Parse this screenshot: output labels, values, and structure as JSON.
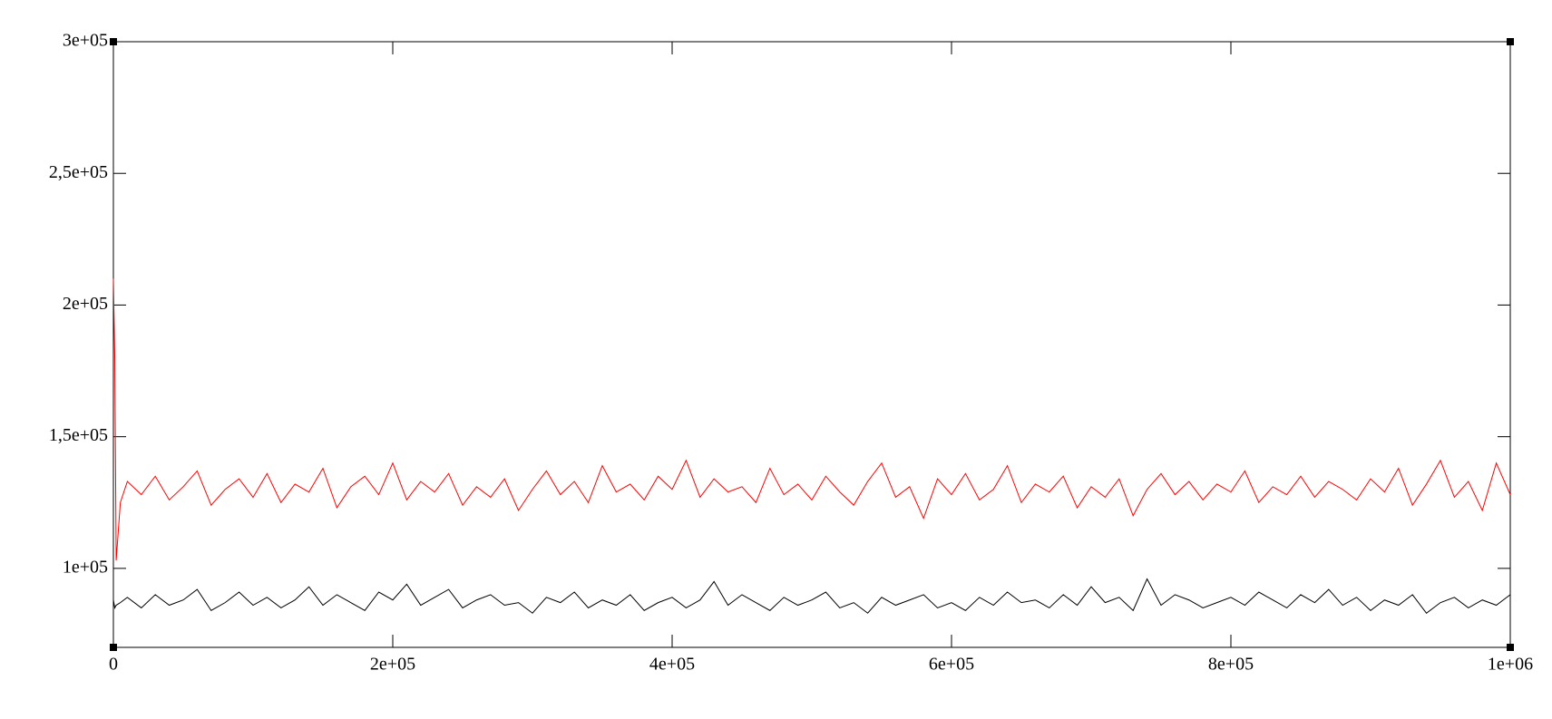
{
  "chart_data": {
    "type": "line",
    "x": [
      0,
      1000,
      2000,
      5000,
      10000,
      20000,
      30000,
      40000,
      50000,
      60000,
      70000,
      80000,
      90000,
      100000,
      110000,
      120000,
      130000,
      140000,
      150000,
      160000,
      170000,
      180000,
      190000,
      200000,
      210000,
      220000,
      230000,
      240000,
      250000,
      260000,
      270000,
      280000,
      290000,
      300000,
      310000,
      320000,
      330000,
      340000,
      350000,
      360000,
      370000,
      380000,
      390000,
      400000,
      410000,
      420000,
      430000,
      440000,
      450000,
      460000,
      470000,
      480000,
      490000,
      500000,
      510000,
      520000,
      530000,
      540000,
      550000,
      560000,
      570000,
      580000,
      590000,
      600000,
      610000,
      620000,
      630000,
      640000,
      650000,
      660000,
      670000,
      680000,
      690000,
      700000,
      710000,
      720000,
      730000,
      740000,
      750000,
      760000,
      770000,
      780000,
      790000,
      800000,
      810000,
      820000,
      830000,
      840000,
      850000,
      860000,
      870000,
      880000,
      890000,
      900000,
      910000,
      920000,
      930000,
      940000,
      950000,
      960000,
      970000,
      980000,
      990000,
      1000000
    ],
    "series": [
      {
        "color": "#ff0000",
        "values": [
          210000,
          180000,
          103000,
          125000,
          133000,
          128000,
          135000,
          126000,
          131000,
          137000,
          124000,
          130000,
          134000,
          127000,
          136000,
          125000,
          132000,
          129000,
          138000,
          123000,
          131000,
          135000,
          128000,
          140000,
          126000,
          133000,
          129000,
          136000,
          124000,
          131000,
          127000,
          134000,
          122000,
          130000,
          137000,
          128000,
          133000,
          125000,
          139000,
          129000,
          132000,
          126000,
          135000,
          130000,
          141000,
          127000,
          134000,
          129000,
          131000,
          125000,
          138000,
          128000,
          132000,
          126000,
          135000,
          129000,
          124000,
          133000,
          140000,
          127000,
          131000,
          119000,
          134000,
          128000,
          136000,
          126000,
          130000,
          139000,
          125000,
          132000,
          129000,
          135000,
          123000,
          131000,
          127000,
          134000,
          120000,
          130000,
          136000,
          128000,
          133000,
          126000,
          132000,
          129000,
          137000,
          125000,
          131000,
          128000,
          135000,
          127000,
          133000,
          130000,
          126000,
          134000,
          129000,
          138000,
          124000,
          132000,
          141000,
          127000,
          133000,
          122000,
          140000,
          128000
        ]
      },
      {
        "color": "#000000",
        "values": [
          88000,
          85000,
          86000,
          87000,
          89000,
          85000,
          90000,
          86000,
          88000,
          92000,
          84000,
          87000,
          91000,
          86000,
          89000,
          85000,
          88000,
          93000,
          86000,
          90000,
          87000,
          84000,
          91000,
          88000,
          94000,
          86000,
          89000,
          92000,
          85000,
          88000,
          90000,
          86000,
          87000,
          83000,
          89000,
          87000,
          91000,
          85000,
          88000,
          86000,
          90000,
          84000,
          87000,
          89000,
          85000,
          88000,
          95000,
          86000,
          90000,
          87000,
          84000,
          89000,
          86000,
          88000,
          91000,
          85000,
          87000,
          83000,
          89000,
          86000,
          88000,
          90000,
          85000,
          87000,
          84000,
          89000,
          86000,
          91000,
          87000,
          88000,
          85000,
          90000,
          86000,
          93000,
          87000,
          89000,
          84000,
          96000,
          86000,
          90000,
          88000,
          85000,
          87000,
          89000,
          86000,
          91000,
          88000,
          85000,
          90000,
          87000,
          92000,
          86000,
          89000,
          84000,
          88000,
          86000,
          90000,
          83000,
          87000,
          89000,
          85000,
          88000,
          86000,
          90000
        ]
      }
    ],
    "xlim": [
      0,
      1000000
    ],
    "xticks": [
      0,
      {
        "value": 200000,
        "label": "2e+05"
      },
      {
        "value": 400000,
        "label": "4e+05"
      },
      {
        "value": 600000,
        "label": "6e+05"
      },
      {
        "value": 800000,
        "label": "8e+05"
      },
      {
        "value": 1000000,
        "label": "1e+06"
      }
    ],
    "ylim": [
      70000,
      300000
    ],
    "yticks": [
      {
        "value": 100000,
        "label": "1e+05"
      },
      {
        "value": 150000,
        "label": "1,5e+05"
      },
      {
        "value": 200000,
        "label": "2e+05"
      },
      {
        "value": 250000,
        "label": "2,5e+05"
      },
      {
        "value": 300000,
        "label": "3e+05"
      }
    ],
    "grid": false
  }
}
